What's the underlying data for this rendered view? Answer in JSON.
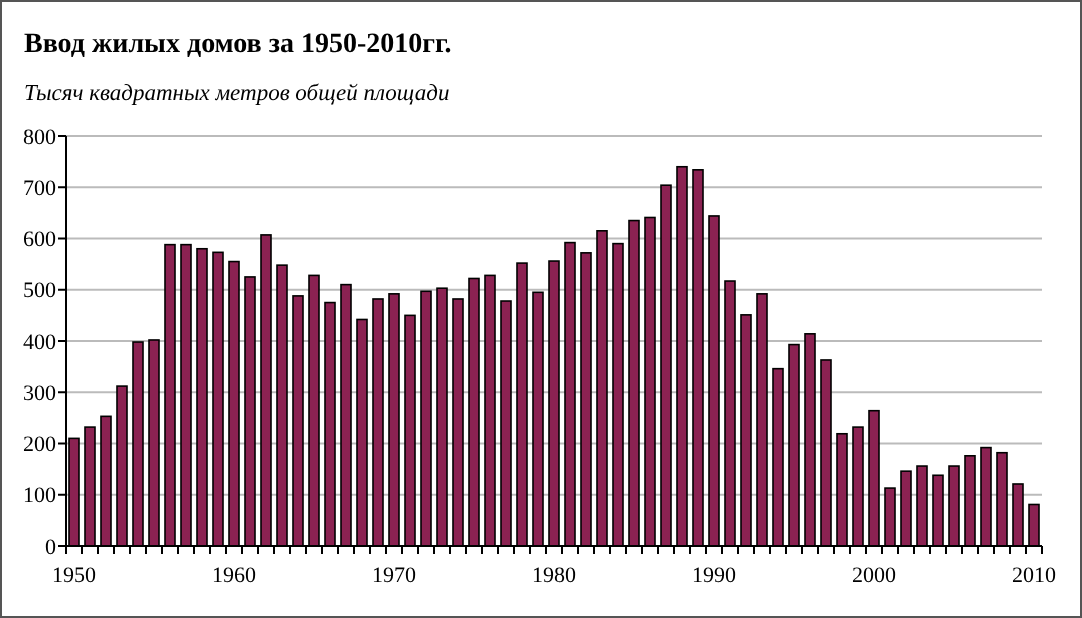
{
  "chart_data": {
    "type": "bar",
    "title": "Ввод жилых домов за 1950-2010гг.",
    "subtitle": "Тысяч квадратных метров общей площади",
    "categories": [
      "1950",
      null,
      null,
      null,
      null,
      null,
      null,
      null,
      null,
      null,
      "1960",
      null,
      null,
      null,
      null,
      null,
      null,
      null,
      null,
      null,
      "1970",
      null,
      null,
      null,
      null,
      null,
      null,
      null,
      null,
      null,
      "1980",
      null,
      null,
      null,
      null,
      null,
      null,
      null,
      null,
      null,
      "1990",
      null,
      null,
      null,
      null,
      null,
      null,
      null,
      null,
      null,
      "2000",
      null,
      null,
      null,
      null,
      null,
      null,
      null,
      null,
      null,
      "2010"
    ],
    "values": [
      210,
      232,
      253,
      312,
      398,
      402,
      588,
      588,
      580,
      573,
      555,
      525,
      607,
      548,
      488,
      528,
      475,
      510,
      442,
      482,
      492,
      450,
      497,
      503,
      482,
      522,
      528,
      478,
      552,
      495,
      556,
      592,
      572,
      615,
      590,
      635,
      641,
      704,
      740,
      734,
      644,
      517,
      451,
      492,
      346,
      393,
      414,
      363,
      219,
      232,
      264,
      113,
      146,
      156,
      138,
      156,
      176,
      192,
      182,
      121,
      81
    ],
    "color": "#8b2252",
    "ylim": [
      0,
      800
    ],
    "yticks": [
      0,
      100,
      200,
      300,
      400,
      500,
      600,
      700,
      800
    ],
    "grid": "y"
  }
}
